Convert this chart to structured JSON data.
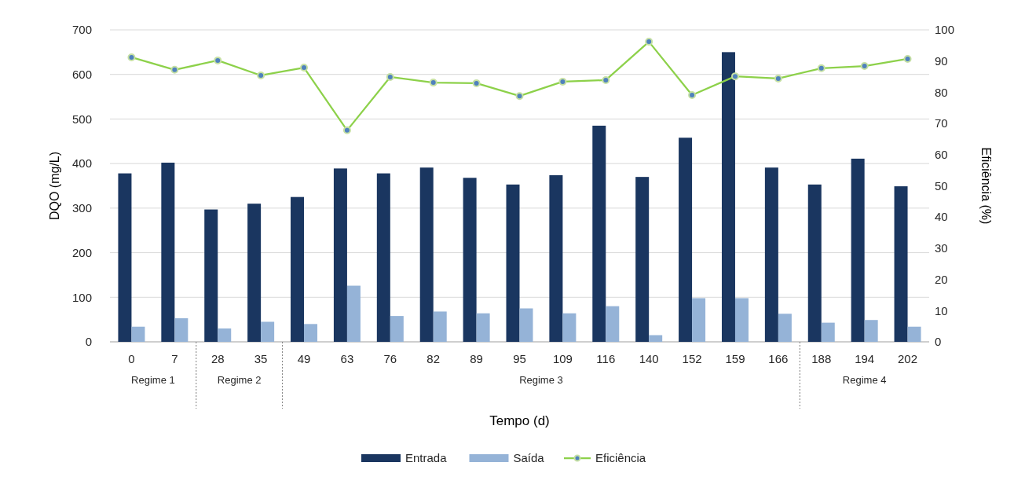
{
  "chart_data": {
    "type": "bar",
    "xlabel": "Tempo (d)",
    "ylabel": "DQO (mg/L)",
    "y2label": "Eficiência (%)",
    "categories": [
      "0",
      "7",
      "28",
      "35",
      "49",
      "63",
      "76",
      "82",
      "89",
      "95",
      "109",
      "116",
      "140",
      "152",
      "159",
      "166",
      "188",
      "194",
      "202"
    ],
    "series": [
      {
        "name": "Entrada",
        "color": "#1a3660",
        "values": [
          378,
          402,
          297,
          310,
          325,
          389,
          378,
          391,
          368,
          353,
          374,
          485,
          370,
          458,
          650,
          391,
          353,
          411,
          349
        ]
      },
      {
        "name": "Saída",
        "color": "#95b3d7",
        "values": [
          34,
          53,
          30,
          45,
          40,
          126,
          58,
          68,
          64,
          75,
          64,
          80,
          15,
          98,
          98,
          63,
          43,
          49,
          34
        ]
      },
      {
        "name": "Eficiência",
        "type": "line",
        "axis": "y2",
        "color": "#8dd14a",
        "marker": "circle",
        "values": [
          91.2,
          87.2,
          90.2,
          85.4,
          87.9,
          67.8,
          84.9,
          83.1,
          82.9,
          78.8,
          83.4,
          83.9,
          96.2,
          79.1,
          85.1,
          84.4,
          87.7,
          88.4,
          90.7
        ]
      }
    ],
    "ylim": [
      0,
      700
    ],
    "yticks": [
      0,
      100,
      200,
      300,
      400,
      500,
      600,
      700
    ],
    "y2lim": [
      0,
      100
    ],
    "y2ticks": [
      0,
      10,
      20,
      30,
      40,
      50,
      60,
      70,
      80,
      90,
      100
    ],
    "annotations": [
      "Regime 1",
      "Regime 2",
      "Regime 3",
      "Regime 4"
    ],
    "grid": "y",
    "legend": "bottom"
  }
}
